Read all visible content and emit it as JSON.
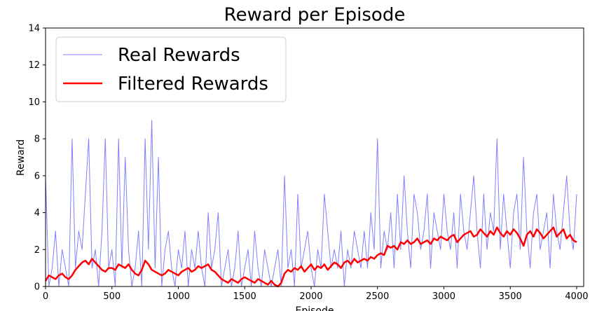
{
  "chart_data": {
    "type": "line",
    "title": "Reward per Episode",
    "x_label": "Episode",
    "y_label": "Reward",
    "x": [
      0,
      25,
      50,
      75,
      100,
      125,
      150,
      175,
      200,
      225,
      250,
      275,
      300,
      325,
      350,
      375,
      400,
      425,
      450,
      475,
      500,
      525,
      550,
      575,
      600,
      625,
      650,
      675,
      700,
      725,
      750,
      775,
      800,
      825,
      850,
      875,
      900,
      925,
      950,
      975,
      1000,
      1025,
      1050,
      1075,
      1100,
      1125,
      1150,
      1175,
      1200,
      1225,
      1250,
      1275,
      1300,
      1325,
      1350,
      1375,
      1400,
      1425,
      1450,
      1475,
      1500,
      1525,
      1550,
      1575,
      1600,
      1625,
      1650,
      1675,
      1700,
      1725,
      1750,
      1775,
      1800,
      1825,
      1850,
      1875,
      1900,
      1925,
      1950,
      1975,
      2000,
      2025,
      2050,
      2075,
      2100,
      2125,
      2150,
      2175,
      2200,
      2225,
      2250,
      2275,
      2300,
      2325,
      2350,
      2375,
      2400,
      2425,
      2450,
      2475,
      2500,
      2525,
      2550,
      2575,
      2600,
      2625,
      2650,
      2675,
      2700,
      2725,
      2750,
      2775,
      2800,
      2825,
      2850,
      2875,
      2900,
      2925,
      2950,
      2975,
      3000,
      3025,
      3050,
      3075,
      3100,
      3125,
      3150,
      3175,
      3200,
      3225,
      3250,
      3275,
      3300,
      3325,
      3350,
      3375,
      3400,
      3425,
      3450,
      3475,
      3500,
      3525,
      3550,
      3575,
      3600,
      3625,
      3650,
      3675,
      3700,
      3725,
      3750,
      3775,
      3800,
      3825,
      3850,
      3875,
      3900,
      3925,
      3950,
      3975,
      4000
    ],
    "series": [
      {
        "name": "Real Rewards",
        "color": "#8080ff",
        "width": 1,
        "values": [
          6,
          0,
          1,
          3,
          0,
          2,
          1,
          0,
          8,
          1,
          3,
          2,
          5,
          8,
          1,
          2,
          0,
          3,
          8,
          1,
          2,
          0,
          8,
          1,
          7,
          2,
          0,
          1,
          3,
          0,
          8,
          2,
          9,
          1,
          7,
          0,
          2,
          3,
          1,
          0,
          2,
          1,
          3,
          0,
          2,
          1,
          3,
          1,
          0,
          4,
          1,
          2,
          4,
          0,
          1,
          2,
          0,
          1,
          3,
          0,
          1,
          2,
          0,
          3,
          1,
          0,
          2,
          1,
          0,
          1,
          2,
          0,
          6,
          1,
          2,
          0,
          5,
          1,
          2,
          3,
          1,
          0,
          2,
          1,
          5,
          3,
          1,
          2,
          1,
          3,
          0,
          2,
          1,
          3,
          2,
          1,
          3,
          1,
          4,
          2,
          8,
          1,
          3,
          2,
          4,
          1,
          5,
          2,
          6,
          3,
          1,
          5,
          4,
          2,
          3,
          5,
          1,
          4,
          3,
          2,
          5,
          3,
          2,
          4,
          1,
          5,
          3,
          2,
          4,
          6,
          3,
          1,
          5,
          2,
          4,
          3,
          8,
          2,
          5,
          3,
          1,
          4,
          5,
          2,
          7,
          3,
          1,
          4,
          5,
          2,
          3,
          4,
          1,
          5,
          3,
          2,
          4,
          6,
          3,
          2,
          5
        ]
      },
      {
        "name": "Filtered Rewards",
        "color": "#ff0000",
        "width": 2.5,
        "values": [
          0.3,
          0.6,
          0.5,
          0.4,
          0.6,
          0.7,
          0.5,
          0.4,
          0.6,
          0.9,
          1.1,
          1.3,
          1.4,
          1.2,
          1.5,
          1.3,
          1.1,
          0.9,
          0.8,
          1.0,
          1.0,
          0.9,
          1.2,
          1.1,
          1.0,
          1.2,
          0.9,
          0.7,
          0.6,
          0.9,
          1.4,
          1.2,
          0.9,
          0.8,
          0.7,
          0.6,
          0.7,
          0.9,
          0.8,
          0.7,
          0.6,
          0.8,
          0.9,
          1.0,
          0.8,
          0.9,
          1.1,
          1.0,
          1.1,
          1.2,
          0.9,
          0.8,
          0.6,
          0.4,
          0.3,
          0.2,
          0.4,
          0.3,
          0.2,
          0.4,
          0.5,
          0.4,
          0.3,
          0.2,
          0.4,
          0.3,
          0.2,
          0.1,
          0.3,
          0.1,
          0.0,
          0.2,
          0.7,
          0.9,
          0.8,
          1.0,
          0.9,
          1.1,
          0.8,
          1.0,
          1.2,
          0.9,
          1.1,
          1.0,
          1.2,
          0.9,
          1.1,
          1.3,
          1.2,
          1.0,
          1.3,
          1.4,
          1.2,
          1.5,
          1.3,
          1.4,
          1.5,
          1.4,
          1.6,
          1.5,
          1.7,
          1.8,
          1.7,
          2.2,
          2.1,
          2.2,
          2.0,
          2.4,
          2.3,
          2.5,
          2.3,
          2.4,
          2.6,
          2.3,
          2.4,
          2.5,
          2.3,
          2.6,
          2.5,
          2.7,
          2.6,
          2.5,
          2.7,
          2.8,
          2.4,
          2.6,
          2.8,
          2.9,
          3.0,
          2.7,
          2.8,
          3.1,
          2.9,
          2.7,
          3.0,
          2.8,
          3.2,
          2.9,
          2.7,
          3.0,
          2.8,
          3.1,
          2.9,
          2.6,
          2.2,
          2.8,
          3.0,
          2.7,
          3.1,
          2.9,
          2.6,
          2.8,
          3.0,
          3.2,
          2.7,
          2.9,
          3.1,
          2.6,
          2.8,
          2.5,
          2.4
        ]
      }
    ],
    "xlim": [
      0,
      4053
    ],
    "ylim": [
      0,
      14
    ],
    "xticks": [
      0,
      500,
      1000,
      1500,
      2000,
      2500,
      3000,
      3500,
      4000
    ],
    "yticks": [
      0,
      2,
      4,
      6,
      8,
      10,
      12,
      14
    ],
    "legend": "upper left",
    "grid": false
  }
}
